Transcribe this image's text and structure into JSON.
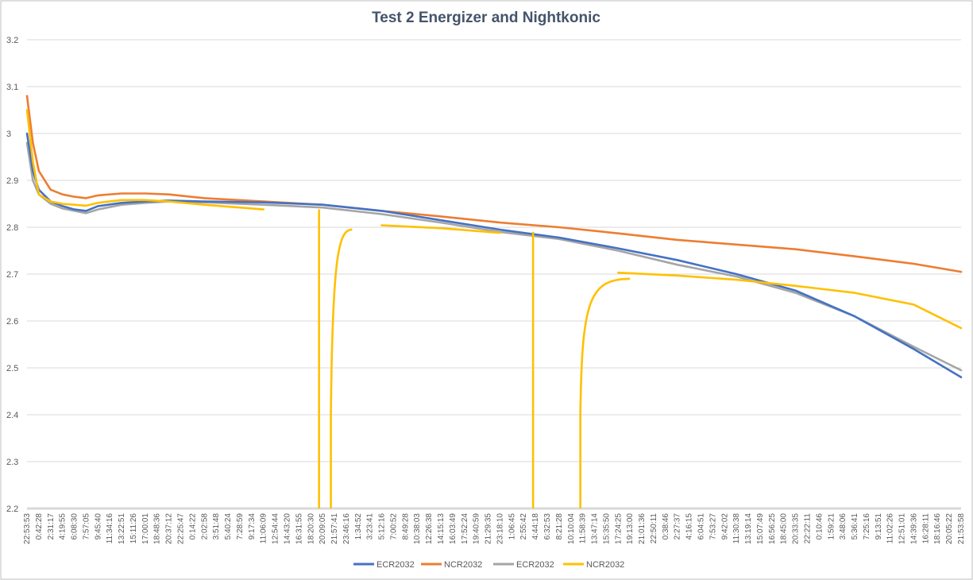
{
  "chart_data": {
    "type": "line",
    "title": "Test 2 Energizer and Nightkonic",
    "xlabel": "",
    "ylabel": "",
    "ylim": [
      2.2,
      3.2
    ],
    "yticks": [
      "2.2",
      "2.3",
      "2.4",
      "2.5",
      "2.6",
      "2.7",
      "2.8",
      "2.9",
      "3",
      "3.1",
      "3.2"
    ],
    "xtick_labels": [
      "22:53:53",
      "0:42:28",
      "2:31:17",
      "4:19:55",
      "6:08:30",
      "7:57:05",
      "9:45:40",
      "11:34:16",
      "13:22:51",
      "15:11:26",
      "17:00:01",
      "18:48:36",
      "20:37:12",
      "22:25:47",
      "0:14:22",
      "2:02:58",
      "3:51:48",
      "5:40:24",
      "7:28:59",
      "9:17:34",
      "11:06:09",
      "12:54:44",
      "14:43:20",
      "16:31:55",
      "18:20:30",
      "20:09:05",
      "21:57:41",
      "23:46:16",
      "1:34:52",
      "3:23:41",
      "5:12:16",
      "7:00:52",
      "8:49:28",
      "10:38:03",
      "12:26:38",
      "14:15:13",
      "16:03:49",
      "17:52:24",
      "19:40:59",
      "21:29:35",
      "23:18:10",
      "1:06:45",
      "2:55:42",
      "4:44:18",
      "6:32:53",
      "8:21:28",
      "10:10:04",
      "11:58:39",
      "13:47:14",
      "15:35:50",
      "17:24:25",
      "19:13:00",
      "21:01:36",
      "22:50:11",
      "0:38:46",
      "2:27:37",
      "4:16:15",
      "6:04:51",
      "7:53:27",
      "9:42:02",
      "11:30:38",
      "13:19:14",
      "15:07:49",
      "16:56:25",
      "18:45:00",
      "20:33:35",
      "22:22:11",
      "0:10:46",
      "1:59:21",
      "3:48:06",
      "5:36:41",
      "7:25:16",
      "9:13:51",
      "11:02:26",
      "12:51:01",
      "14:39:36",
      "16:28:11",
      "18:16:46",
      "20:05:22",
      "21:53:58"
    ],
    "grid": true,
    "legend_position": "bottom",
    "x": [
      0,
      0.5,
      1,
      2,
      3,
      4,
      5,
      6,
      8,
      10,
      12,
      15,
      20,
      25,
      30,
      35,
      40,
      45,
      50,
      55,
      60,
      65,
      70,
      75,
      79
    ],
    "series": [
      {
        "name": "ECR2032",
        "color": "#4472c4",
        "values": [
          3.0,
          2.92,
          2.88,
          2.855,
          2.845,
          2.838,
          2.835,
          2.845,
          2.852,
          2.855,
          2.857,
          2.855,
          2.853,
          2.848,
          2.835,
          2.815,
          2.795,
          2.778,
          2.755,
          2.73,
          2.7,
          2.665,
          2.61,
          2.54,
          2.48
        ]
      },
      {
        "name": "NCR2032",
        "color": "#ed7d31",
        "values": [
          3.08,
          2.98,
          2.92,
          2.88,
          2.87,
          2.865,
          2.862,
          2.868,
          2.872,
          2.872,
          2.87,
          2.862,
          2.855,
          2.848,
          2.835,
          2.823,
          2.81,
          2.8,
          2.787,
          2.773,
          2.763,
          2.753,
          2.738,
          2.722,
          2.705
        ]
      },
      {
        "name": "ECR2032",
        "color": "#a5a5a5",
        "values": [
          2.98,
          2.9,
          2.87,
          2.85,
          2.84,
          2.835,
          2.83,
          2.838,
          2.848,
          2.852,
          2.855,
          2.853,
          2.848,
          2.842,
          2.828,
          2.81,
          2.79,
          2.775,
          2.75,
          2.72,
          2.695,
          2.66,
          2.61,
          2.545,
          2.495
        ]
      },
      {
        "name": "NCR2032",
        "color": "#ffc000",
        "values": [
          3.05,
          2.94,
          2.87,
          2.855,
          2.85,
          2.848,
          2.846,
          2.852,
          2.858,
          2.858,
          2.855,
          2.848,
          2.838,
          null,
          2.804,
          2.798,
          2.788,
          null,
          2.703,
          2.697,
          2.688,
          2.675,
          2.66,
          2.635,
          2.585
        ]
      }
    ],
    "dropouts": [
      {
        "x_from": 24.7,
        "x_to": 25.7,
        "y_min": 2.2,
        "recover_to": 2.795
      },
      {
        "x_from": 42.8,
        "x_to": 46.8,
        "y_min": 2.2,
        "recover_to": 2.69
      }
    ]
  }
}
